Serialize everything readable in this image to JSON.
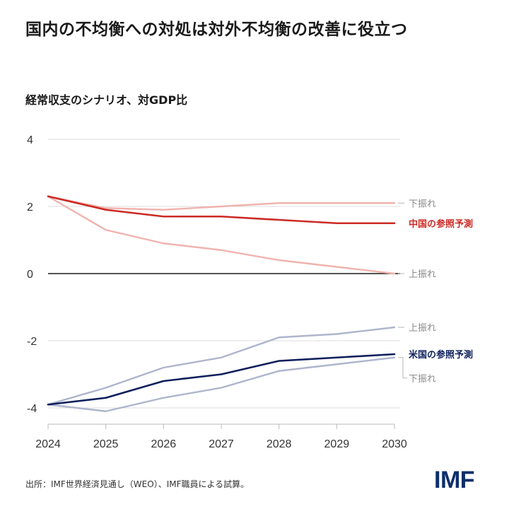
{
  "title": "国内の不均衡への対処は対外不均衡の改善に役立つ",
  "subtitle": "経常収支のシナリオ、対GDP比",
  "source": "出所：IMF世界経済見通し（WEO）、IMF職員による試算。",
  "logo": "IMF",
  "colors": {
    "china_main": "#cc2a24",
    "china_scenario": "#f0b3ae",
    "us_main": "#0d1f5c",
    "us_scenario": "#aeb5cc",
    "zero_line": "#1a1a1a",
    "gridline": "#dddddd",
    "connector": "#b5b5b5",
    "label_gray": "#8a8a8a"
  },
  "chart_data": {
    "type": "line",
    "title": "国内の不均衡への対処は対外不均衡の改善に役立つ",
    "subtitle": "経常収支のシナリオ、対GDP比",
    "x": [
      2024,
      2025,
      2026,
      2027,
      2028,
      2029,
      2030
    ],
    "x_tick_labels": [
      "2024",
      "2025",
      "2026",
      "2027",
      "2028",
      "2029",
      "2030"
    ],
    "y_ticks": [
      4,
      2,
      0,
      -2,
      -4
    ],
    "y_tick_labels": [
      "4",
      "2",
      "0",
      "-2",
      "-4"
    ],
    "ylim": [
      -4.5,
      4.3
    ],
    "series": [
      {
        "key": "china_downside",
        "name": "下振れ",
        "group": "china",
        "role": "scenario",
        "values": [
          2.3,
          1.95,
          1.9,
          2.0,
          2.1,
          2.1,
          2.1
        ]
      },
      {
        "key": "china_upside",
        "name": "上振れ",
        "group": "china",
        "role": "scenario",
        "values": [
          2.3,
          1.3,
          0.9,
          0.7,
          0.4,
          0.2,
          0.0
        ]
      },
      {
        "key": "china_forecast",
        "name": "中国の参照予測",
        "group": "china",
        "role": "main",
        "values": [
          2.3,
          1.9,
          1.7,
          1.7,
          1.6,
          1.5,
          1.5
        ]
      },
      {
        "key": "us_upside",
        "name": "上振れ",
        "group": "us",
        "role": "scenario",
        "values": [
          -3.9,
          -3.4,
          -2.8,
          -2.5,
          -1.9,
          -1.8,
          -1.6
        ]
      },
      {
        "key": "us_downside",
        "name": "下振れ",
        "group": "us",
        "role": "scenario",
        "values": [
          -3.9,
          -4.1,
          -3.7,
          -3.4,
          -2.9,
          -2.7,
          -2.5
        ]
      },
      {
        "key": "us_forecast",
        "name": "米国の参照予測",
        "group": "us",
        "role": "main",
        "values": [
          -3.9,
          -3.7,
          -3.2,
          -3.0,
          -2.6,
          -2.5,
          -2.4
        ]
      }
    ],
    "annotations": [
      "下振れ",
      "中国の参照予測",
      "上振れ",
      "上振れ",
      "米国の参照予測",
      "下振れ"
    ]
  }
}
